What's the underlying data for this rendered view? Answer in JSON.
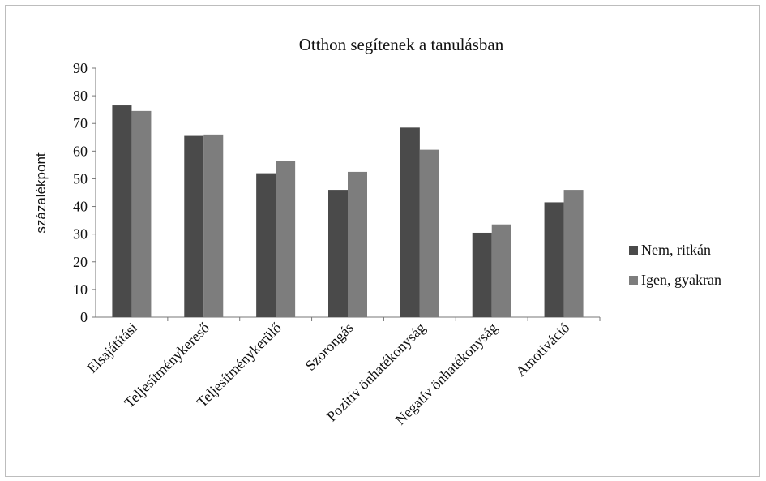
{
  "chart_data": {
    "type": "bar",
    "title": "Otthon segítenek a tanulásban",
    "ylabel": "százalékpont",
    "xlabel": "",
    "ylim": [
      0,
      90
    ],
    "yticks": [
      0,
      10,
      20,
      30,
      40,
      50,
      60,
      70,
      80,
      90
    ],
    "grid": false,
    "legend_position": "right",
    "categories": [
      "Elsajátítási",
      "Teljesítménykereső",
      "Teljesítménykerülő",
      "Szorongás",
      "Pozitív önhatékonyság",
      "Negatív önhatékonyság",
      "Amotiváció"
    ],
    "series": [
      {
        "name": "Nem, ritkán",
        "color": "#4a4a4a",
        "values": [
          76.5,
          65.5,
          52,
          46,
          68.5,
          30.5,
          41.5
        ]
      },
      {
        "name": "Igen, gyakran",
        "color": "#7d7d7d",
        "values": [
          74.5,
          66,
          56.5,
          52.5,
          60.5,
          33.5,
          46
        ]
      }
    ]
  }
}
